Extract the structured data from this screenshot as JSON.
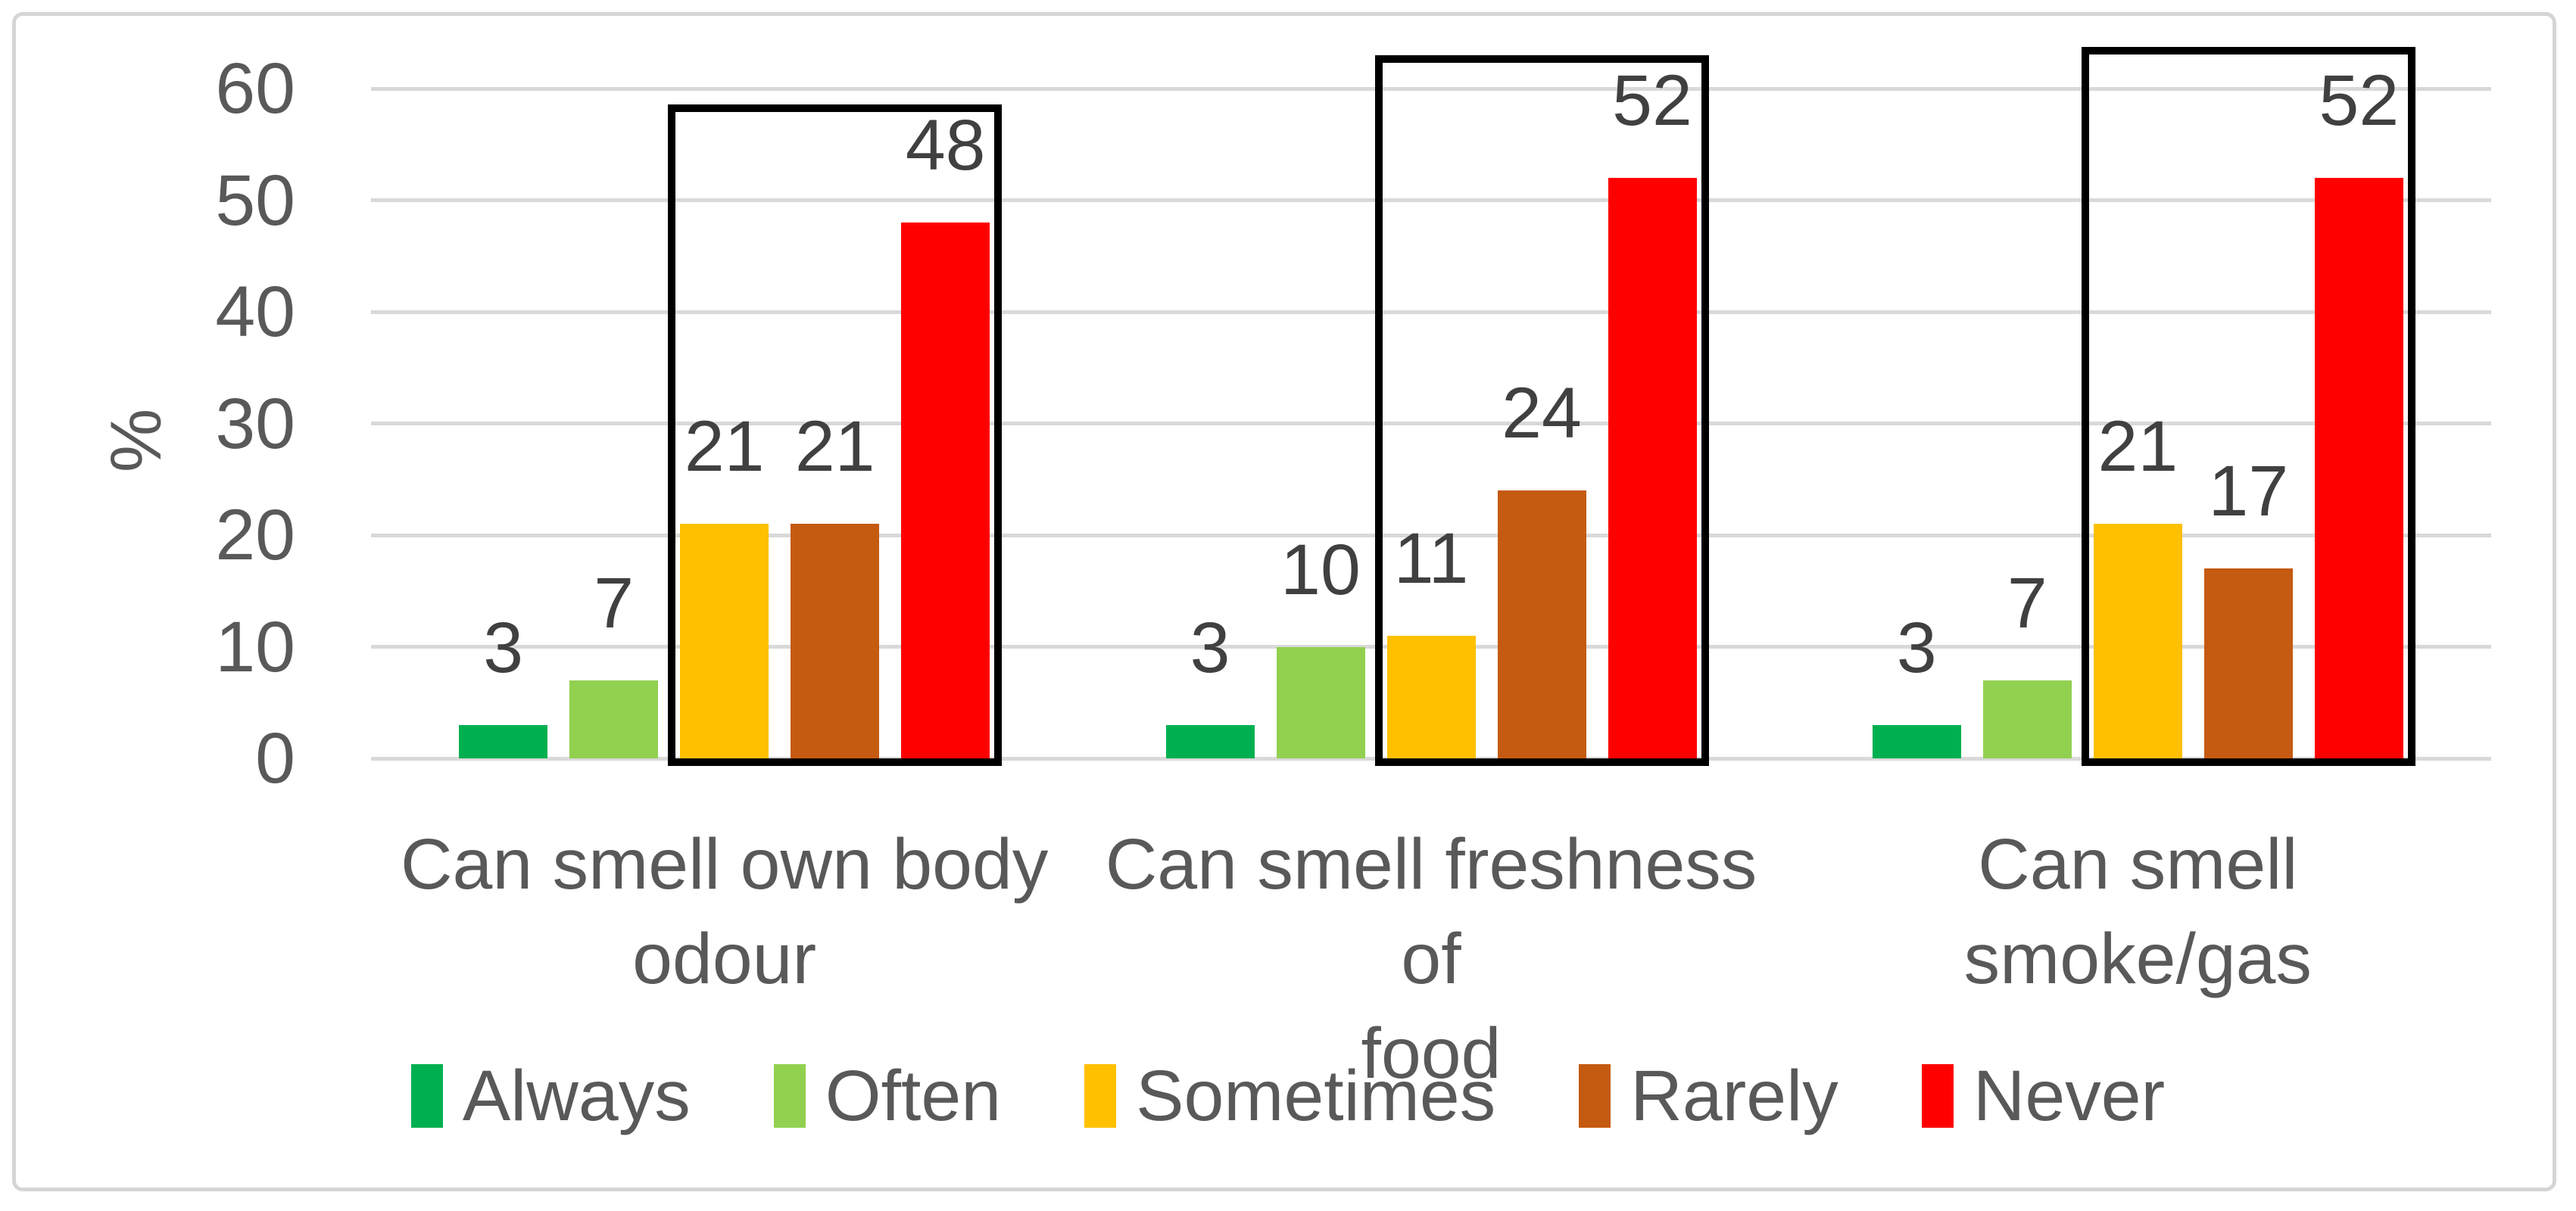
{
  "chart_data": {
    "type": "bar",
    "title": "",
    "ylabel": "%",
    "xlabel": "",
    "ylim": [
      0,
      60
    ],
    "yticks": [
      0,
      10,
      20,
      30,
      40,
      50,
      60
    ],
    "grid": true,
    "legend_position": "bottom",
    "data_labels": true,
    "categories": [
      "Can smell own body odour",
      "Can smell freshness of food",
      "Can smell smoke/gas"
    ],
    "categories_wrapped": [
      [
        "Can smell own body",
        "odour"
      ],
      [
        "Can smell freshness of",
        "food"
      ],
      [
        "Can smell smoke/gas"
      ]
    ],
    "series": [
      {
        "name": "Always",
        "color": "#00B050",
        "values": [
          3,
          3,
          3
        ]
      },
      {
        "name": "Often",
        "color": "#92D050",
        "values": [
          7,
          10,
          7
        ]
      },
      {
        "name": "Sometimes",
        "color": "#FFC000",
        "values": [
          21,
          11,
          21
        ]
      },
      {
        "name": "Rarely",
        "color": "#C55A11",
        "values": [
          21,
          24,
          17
        ]
      },
      {
        "name": "Never",
        "color": "#FF0000",
        "values": [
          48,
          52,
          52
        ]
      }
    ],
    "highlight_boxes": [
      {
        "category": "Can smell own body odour",
        "series": [
          "Sometimes",
          "Rarely",
          "Never"
        ],
        "top_value": 58.6
      },
      {
        "category": "Can smell freshness of food",
        "series": [
          "Sometimes",
          "Rarely",
          "Never"
        ],
        "top_value": 63.0
      },
      {
        "category": "Can smell smoke/gas",
        "series": [
          "Sometimes",
          "Rarely",
          "Never"
        ],
        "top_value": 63.7
      }
    ]
  },
  "styles": {
    "background": "#FFFFFF",
    "frame_border_color": "#D5D5D5",
    "gridline_color": "#D9D9D9",
    "axis_text_color": "#595959",
    "data_label_color": "#404040",
    "highlight_box_color": "#000000"
  }
}
